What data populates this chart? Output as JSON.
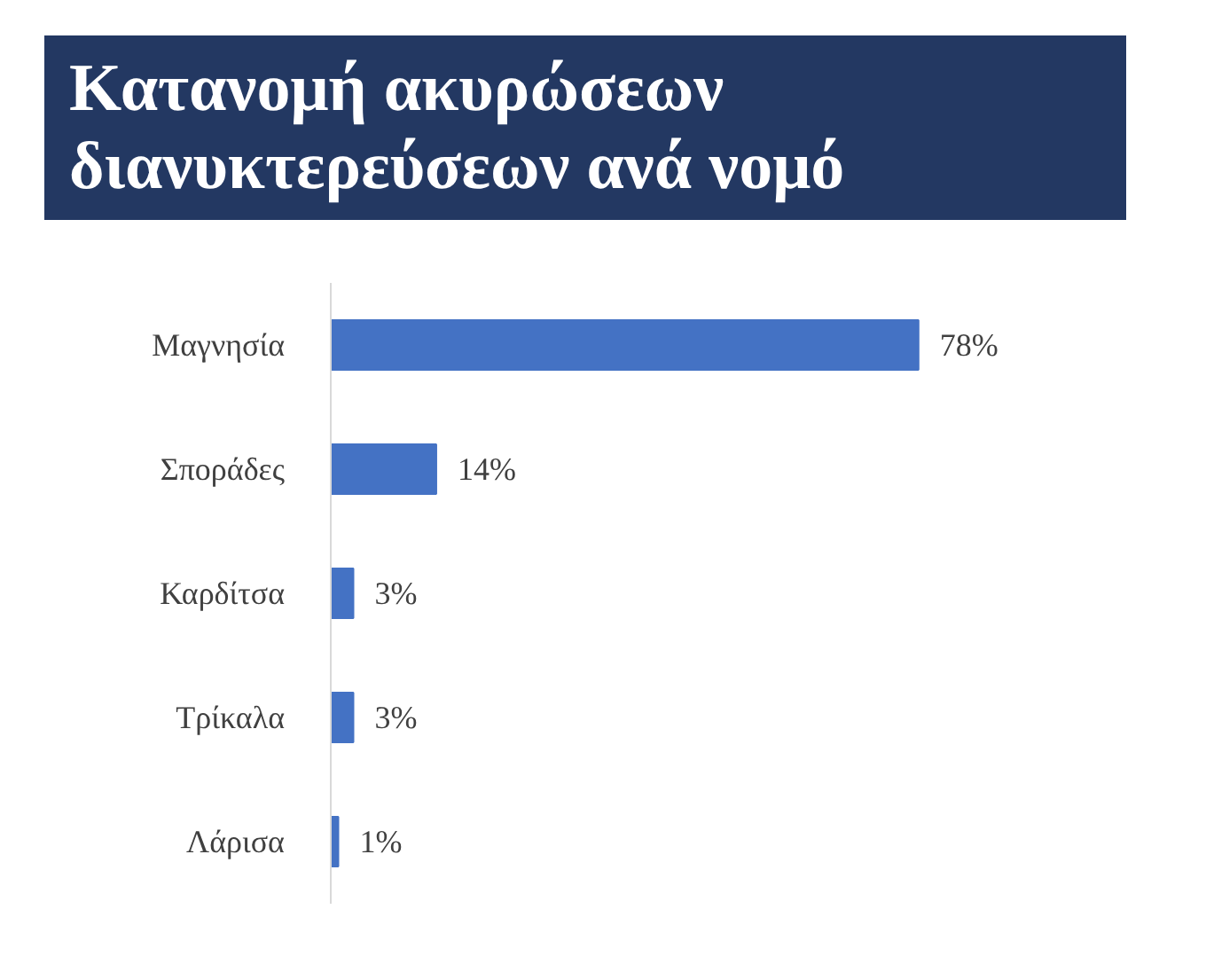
{
  "chart_data": {
    "type": "bar",
    "orientation": "horizontal",
    "title": "Κατανομή ακυρώσεων διανυκτερεύσεων ανά νομό",
    "categories": [
      "Μαγνησία",
      "Σποράδες",
      "Καρδίτσα",
      "Τρίκαλα",
      "Λάρισα"
    ],
    "values": [
      78,
      14,
      3,
      3,
      1
    ],
    "value_labels": [
      "78%",
      "14%",
      "3%",
      "3%",
      "1%"
    ],
    "color": "#4472c4",
    "grid": false
  }
}
